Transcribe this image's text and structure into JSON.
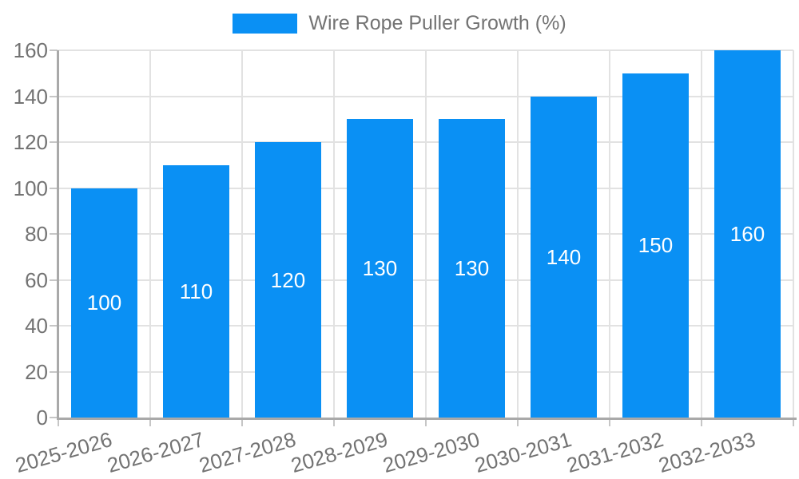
{
  "legend": {
    "label": "Wire Rope Puller Growth (%)",
    "swatch_color": "#0a90f4"
  },
  "chart_data": {
    "type": "bar",
    "title": "Wire Rope Puller Growth (%)",
    "categories": [
      "2025-2026",
      "2026-2027",
      "2027-2028",
      "2028-2029",
      "2029-2030",
      "2030-2031",
      "2031-2032",
      "2032-2033"
    ],
    "series": [
      {
        "name": "Wire Rope Puller Growth (%)",
        "values": [
          100,
          110,
          120,
          130,
          130,
          140,
          150,
          160
        ],
        "color": "#0a90f4"
      }
    ],
    "xlabel": "",
    "ylabel": "",
    "ylim": [
      0,
      160
    ],
    "yticks": [
      0,
      20,
      40,
      60,
      80,
      100,
      120,
      140,
      160
    ],
    "xtick_rotation_deg": -16,
    "bar_labels": {
      "show": true,
      "position": "inside-center",
      "color": "#ffffff"
    },
    "legend_position": "top-center",
    "grid": {
      "horizontal": true,
      "vertical": true,
      "color": "#e2e2e2"
    },
    "axis": {
      "line_color": "#a9a9a9",
      "tick_color": "#c6c6c6",
      "label_color": "#737373"
    },
    "background_color": "#ffffff",
    "bar_color": "#0a90f4",
    "bar_label_color": "#ffffff"
  }
}
